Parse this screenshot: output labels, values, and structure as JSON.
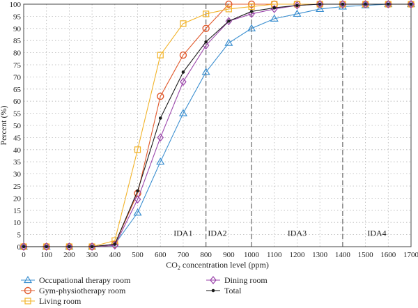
{
  "chart_data": {
    "type": "line",
    "title": "",
    "xlabel_parts": [
      "CO",
      "2",
      " concentration level (ppm)"
    ],
    "ylabel": "Percent (%)",
    "xlim": [
      0,
      1700
    ],
    "ylim": [
      0,
      100
    ],
    "xticks": [
      0,
      100,
      200,
      300,
      400,
      500,
      600,
      700,
      800,
      900,
      1000,
      1100,
      1200,
      1300,
      1400,
      1500,
      1600,
      1700
    ],
    "yticks": [
      0,
      5,
      10,
      15,
      20,
      25,
      30,
      35,
      40,
      45,
      50,
      55,
      60,
      65,
      70,
      75,
      80,
      85,
      90,
      95,
      100
    ],
    "grid": true,
    "legend_position": "bottom",
    "x": [
      0,
      100,
      200,
      300,
      400,
      500,
      600,
      700,
      800,
      900,
      1000,
      1100,
      1200,
      1300,
      1400,
      1500,
      1600,
      1700
    ],
    "series": [
      {
        "name": "Occupational therapy room",
        "color": "#3b8fd0",
        "marker": "triangle",
        "values": [
          0,
          0,
          0,
          0,
          1,
          14,
          35,
          55,
          72,
          84,
          90,
          94,
          96,
          98,
          99,
          99.5,
          100,
          100
        ]
      },
      {
        "name": "Gym-physiotherapy room",
        "color": "#e0582b",
        "marker": "circle",
        "values": [
          0,
          0,
          0,
          0,
          1,
          22,
          62,
          79,
          90,
          100,
          100,
          100,
          100,
          100,
          100,
          100,
          100,
          100
        ]
      },
      {
        "name": "Living room",
        "color": "#f2b329",
        "marker": "square",
        "values": [
          0,
          0,
          0,
          0,
          2.5,
          40,
          79,
          92,
          96,
          98,
          99,
          100,
          100,
          100,
          100,
          100,
          100,
          100
        ]
      },
      {
        "name": "Dining room",
        "color": "#9b45ab",
        "marker": "diamond",
        "values": [
          0,
          0,
          0,
          0,
          0.5,
          19.5,
          45,
          68,
          83,
          93,
          96,
          98,
          99.5,
          100,
          100,
          100,
          100,
          100
        ]
      },
      {
        "name": "Total",
        "color": "#1a1a1a",
        "marker": "dot",
        "values": [
          0,
          0,
          0,
          0,
          1,
          23,
          53,
          72,
          84.5,
          93,
          97,
          98.5,
          99.5,
          100,
          100,
          100,
          100,
          100
        ]
      }
    ],
    "regions": [
      {
        "label": "IDA1",
        "x": 700
      },
      {
        "label": "IDA2",
        "x": 850
      },
      {
        "label": "IDA3",
        "x": 1200
      },
      {
        "label": "IDA4",
        "x": 1550
      }
    ],
    "region_boundaries": [
      800,
      1000,
      1400
    ]
  }
}
